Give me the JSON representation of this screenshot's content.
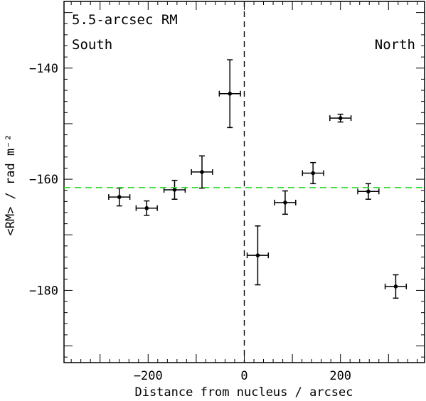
{
  "chart_data": {
    "type": "scatter",
    "title": "",
    "xlabel": "Distance from nucleus / arcsec",
    "ylabel": "<RM> / rad m⁻²",
    "xlim": [
      -375,
      375
    ],
    "ylim": [
      -193,
      -128
    ],
    "xticks": [
      -200,
      0,
      200
    ],
    "yticks": [
      -140,
      -160,
      -180
    ],
    "xtick_labels": [
      "−200",
      "0",
      "200"
    ],
    "ytick_labels": [
      "−140",
      "−160",
      "−180"
    ],
    "grid": false,
    "annotations": {
      "top_left": "5.5-arcsec RM",
      "left": "South",
      "right": "North"
    },
    "reference_lines": {
      "vertical_x": 0,
      "horizontal_y": -161.5,
      "horizontal_color": "#33dd33"
    },
    "points": [
      {
        "x": -260,
        "y": -163.2,
        "xerr": 22,
        "yerr": 1.6
      },
      {
        "x": -203,
        "y": -165.2,
        "xerr": 22,
        "yerr": 1.3
      },
      {
        "x": -145,
        "y": -161.9,
        "xerr": 22,
        "yerr": 1.7
      },
      {
        "x": -88,
        "y": -158.7,
        "xerr": 22,
        "yerr": 2.9
      },
      {
        "x": -30,
        "y": -144.6,
        "xerr": 22,
        "yerr": 6.1
      },
      {
        "x": 28,
        "y": -173.7,
        "xerr": 22,
        "yerr": 5.3
      },
      {
        "x": 85,
        "y": -164.2,
        "xerr": 22,
        "yerr": 2.1
      },
      {
        "x": 143,
        "y": -158.9,
        "xerr": 22,
        "yerr": 1.9
      },
      {
        "x": 200,
        "y": -149.0,
        "xerr": 22,
        "yerr": 0.7
      },
      {
        "x": 258,
        "y": -162.2,
        "xerr": 22,
        "yerr": 1.4
      },
      {
        "x": 315,
        "y": -179.3,
        "xerr": 22,
        "yerr": 2.1
      }
    ]
  }
}
